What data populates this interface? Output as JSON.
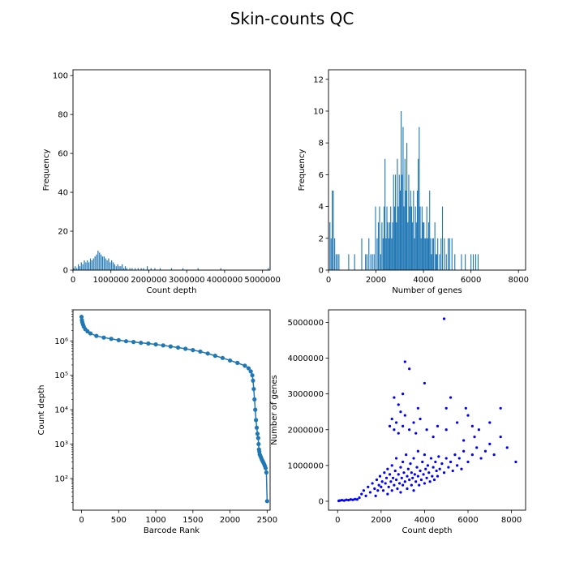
{
  "suptitle": "Skin-counts QC",
  "chart_data": [
    {
      "type": "bar",
      "xlabel": "Count depth",
      "ylabel": "Frequency",
      "xlim": [
        0,
        5200000
      ],
      "ylim": [
        0,
        103
      ],
      "xticks": [
        0,
        1000000,
        2000000,
        3000000,
        4000000,
        5000000
      ],
      "xtick_labels": [
        "0",
        "1000000",
        "2000000",
        "3000000",
        "4000000",
        "5000000"
      ],
      "yticks": [
        0,
        20,
        40,
        60,
        80,
        100
      ],
      "ytick_labels": [
        "0",
        "20",
        "40",
        "60",
        "80",
        "100"
      ],
      "bin_width": 26000,
      "color": "#1f77b4",
      "bins": [
        [
          20000,
          1
        ],
        [
          60000,
          2
        ],
        [
          100000,
          1
        ],
        [
          140000,
          3
        ],
        [
          180000,
          2
        ],
        [
          220000,
          4
        ],
        [
          260000,
          3
        ],
        [
          300000,
          5
        ],
        [
          340000,
          4
        ],
        [
          380000,
          5
        ],
        [
          420000,
          4
        ],
        [
          460000,
          6
        ],
        [
          500000,
          5
        ],
        [
          540000,
          6
        ],
        [
          580000,
          7
        ],
        [
          620000,
          8
        ],
        [
          660000,
          10
        ],
        [
          700000,
          9
        ],
        [
          740000,
          8
        ],
        [
          780000,
          7
        ],
        [
          820000,
          7
        ],
        [
          860000,
          6
        ],
        [
          900000,
          5
        ],
        [
          940000,
          6
        ],
        [
          980000,
          4
        ],
        [
          1020000,
          5
        ],
        [
          1060000,
          4
        ],
        [
          1100000,
          3
        ],
        [
          1140000,
          2
        ],
        [
          1180000,
          3
        ],
        [
          1220000,
          2
        ],
        [
          1260000,
          2
        ],
        [
          1300000,
          3
        ],
        [
          1340000,
          1
        ],
        [
          1380000,
          2
        ],
        [
          1420000,
          1
        ],
        [
          1500000,
          1
        ],
        [
          1560000,
          1
        ],
        [
          1640000,
          1
        ],
        [
          1720000,
          1
        ],
        [
          1800000,
          1
        ],
        [
          1860000,
          1
        ],
        [
          1960000,
          2
        ],
        [
          2060000,
          1
        ],
        [
          2160000,
          1
        ],
        [
          2300000,
          1
        ],
        [
          2600000,
          1
        ],
        [
          2900000,
          1
        ],
        [
          3300000,
          1
        ],
        [
          3900000,
          1
        ],
        [
          5150000,
          1
        ]
      ]
    },
    {
      "type": "bar",
      "xlabel": "Number of genes",
      "ylabel": "Frequency",
      "xlim": [
        0,
        8300
      ],
      "ylim": [
        0,
        12.6
      ],
      "xticks": [
        0,
        2000,
        4000,
        6000,
        8000
      ],
      "xtick_labels": [
        "0",
        "2000",
        "4000",
        "6000",
        "8000"
      ],
      "yticks": [
        0,
        2,
        4,
        6,
        8,
        10,
        12
      ],
      "ytick_labels": [
        "0",
        "2",
        "4",
        "6",
        "8",
        "10",
        "12"
      ],
      "bin_width": 38,
      "color": "#1f77b4",
      "bins": [
        [
          60,
          3
        ],
        [
          110,
          2
        ],
        [
          160,
          5
        ],
        [
          200,
          5
        ],
        [
          260,
          2
        ],
        [
          320,
          1
        ],
        [
          380,
          1
        ],
        [
          440,
          1
        ],
        [
          850,
          1
        ],
        [
          1100,
          1
        ],
        [
          1400,
          2
        ],
        [
          1560,
          1
        ],
        [
          1620,
          1
        ],
        [
          1700,
          2
        ],
        [
          1780,
          1
        ],
        [
          1850,
          1
        ],
        [
          1920,
          1
        ],
        [
          1980,
          4
        ],
        [
          2050,
          2
        ],
        [
          2100,
          3
        ],
        [
          2150,
          4
        ],
        [
          2200,
          1
        ],
        [
          2250,
          3
        ],
        [
          2300,
          2
        ],
        [
          2340,
          4
        ],
        [
          2380,
          7
        ],
        [
          2420,
          2
        ],
        [
          2460,
          4
        ],
        [
          2500,
          3
        ],
        [
          2540,
          2
        ],
        [
          2580,
          3
        ],
        [
          2620,
          4
        ],
        [
          2660,
          2
        ],
        [
          2700,
          3
        ],
        [
          2740,
          6
        ],
        [
          2780,
          4
        ],
        [
          2820,
          6
        ],
        [
          2860,
          3
        ],
        [
          2900,
          7
        ],
        [
          2940,
          4
        ],
        [
          2980,
          6
        ],
        [
          3020,
          5
        ],
        [
          3060,
          10
        ],
        [
          3100,
          6
        ],
        [
          3140,
          9
        ],
        [
          3180,
          4
        ],
        [
          3220,
          7
        ],
        [
          3260,
          5
        ],
        [
          3300,
          8
        ],
        [
          3340,
          3
        ],
        [
          3380,
          6
        ],
        [
          3420,
          4
        ],
        [
          3460,
          5
        ],
        [
          3500,
          4
        ],
        [
          3540,
          3
        ],
        [
          3580,
          5
        ],
        [
          3620,
          2
        ],
        [
          3660,
          4
        ],
        [
          3700,
          3
        ],
        [
          3740,
          5
        ],
        [
          3780,
          7
        ],
        [
          3820,
          9
        ],
        [
          3860,
          4
        ],
        [
          3900,
          2
        ],
        [
          3940,
          4
        ],
        [
          3980,
          3
        ],
        [
          4020,
          3
        ],
        [
          4060,
          2
        ],
        [
          4100,
          2
        ],
        [
          4140,
          4
        ],
        [
          4180,
          2
        ],
        [
          4220,
          3
        ],
        [
          4260,
          5
        ],
        [
          4300,
          2
        ],
        [
          4340,
          1
        ],
        [
          4380,
          2
        ],
        [
          4420,
          2
        ],
        [
          4480,
          3
        ],
        [
          4520,
          1
        ],
        [
          4560,
          1
        ],
        [
          4600,
          2
        ],
        [
          4680,
          1
        ],
        [
          4740,
          2
        ],
        [
          4800,
          4
        ],
        [
          4880,
          2
        ],
        [
          4960,
          1
        ],
        [
          5040,
          2
        ],
        [
          5100,
          2
        ],
        [
          5200,
          2
        ],
        [
          5320,
          1
        ],
        [
          5600,
          1
        ],
        [
          5760,
          1
        ],
        [
          6000,
          1
        ],
        [
          6100,
          1
        ],
        [
          6200,
          1
        ],
        [
          6300,
          1
        ]
      ]
    },
    {
      "type": "line",
      "xlabel": "Barcode Rank",
      "ylabel": "Count depth",
      "yscale": "log",
      "xlim": [
        -115,
        2540
      ],
      "ylim": [
        12,
        8000000
      ],
      "xticks": [
        0,
        500,
        1000,
        1500,
        2000,
        2500
      ],
      "xtick_labels": [
        "0",
        "500",
        "1000",
        "1500",
        "2000",
        "2500"
      ],
      "yticks": [
        100,
        1000,
        10000,
        100000,
        1000000
      ],
      "ytick_labels": [
        "10²",
        "10³",
        "10⁴",
        "10⁵",
        "10⁶"
      ],
      "color": "#1f77b4",
      "marker": "circle",
      "x": [
        0,
        5,
        10,
        20,
        30,
        50,
        80,
        120,
        200,
        300,
        400,
        500,
        600,
        700,
        800,
        900,
        1000,
        1100,
        1200,
        1300,
        1400,
        1500,
        1600,
        1700,
        1800,
        1900,
        2000,
        2100,
        2200,
        2250,
        2280,
        2300,
        2310,
        2320,
        2330,
        2340,
        2350,
        2360,
        2370,
        2380,
        2385,
        2390,
        2395,
        2400,
        2410,
        2420,
        2430,
        2440,
        2450,
        2460,
        2470,
        2480,
        2490,
        2500
      ],
      "y": [
        5000000,
        4000000,
        3500000,
        3000000,
        2600000,
        2200000,
        1900000,
        1650000,
        1400000,
        1250000,
        1150000,
        1050000,
        980000,
        930000,
        880000,
        840000,
        790000,
        740000,
        690000,
        640000,
        590000,
        540000,
        490000,
        430000,
        370000,
        320000,
        270000,
        230000,
        190000,
        160000,
        130000,
        100000,
        70000,
        40000,
        20000,
        10000,
        5000,
        3000,
        2000,
        1500,
        1000,
        700,
        600,
        500,
        450,
        400,
        350,
        320,
        290,
        260,
        230,
        200,
        150,
        22
      ]
    },
    {
      "type": "scatter",
      "xlabel": "Count depth",
      "ylabel": "Number of genes",
      "xlim": [
        -420,
        8650
      ],
      "ylim": [
        -250000,
        5350000
      ],
      "xticks": [
        0,
        2000,
        4000,
        6000,
        8000
      ],
      "xtick_labels": [
        "0",
        "2000",
        "4000",
        "6000",
        "8000"
      ],
      "yticks": [
        0,
        1000000,
        2000000,
        3000000,
        4000000,
        5000000
      ],
      "ytick_labels": [
        "0",
        "1000000",
        "2000000",
        "3000000",
        "4000000",
        "5000000"
      ],
      "color": "#0000ff",
      "points": [
        [
          50,
          10000
        ],
        [
          100,
          20000
        ],
        [
          200,
          30000
        ],
        [
          300,
          20000
        ],
        [
          400,
          40000
        ],
        [
          500,
          30000
        ],
        [
          600,
          50000
        ],
        [
          700,
          40000
        ],
        [
          800,
          60000
        ],
        [
          900,
          50000
        ],
        [
          1000,
          100000
        ],
        [
          1100,
          200000
        ],
        [
          1200,
          300000
        ],
        [
          1300,
          150000
        ],
        [
          1400,
          400000
        ],
        [
          1500,
          250000
        ],
        [
          1600,
          500000
        ],
        [
          1700,
          350000
        ],
        [
          1750,
          150000
        ],
        [
          1800,
          600000
        ],
        [
          1850,
          300000
        ],
        [
          1900,
          450000
        ],
        [
          1950,
          700000
        ],
        [
          2000,
          400000
        ],
        [
          2050,
          550000
        ],
        [
          2100,
          300000
        ],
        [
          2150,
          800000
        ],
        [
          2200,
          500000
        ],
        [
          2250,
          650000
        ],
        [
          2300,
          900000
        ],
        [
          2300,
          200000
        ],
        [
          2350,
          400000
        ],
        [
          2400,
          750000
        ],
        [
          2450,
          550000
        ],
        [
          2500,
          1000000
        ],
        [
          2500,
          300000
        ],
        [
          2550,
          650000
        ],
        [
          2600,
          450000
        ],
        [
          2650,
          850000
        ],
        [
          2700,
          600000
        ],
        [
          2700,
          1200000
        ],
        [
          2750,
          350000
        ],
        [
          2800,
          750000
        ],
        [
          2850,
          500000
        ],
        [
          2900,
          950000
        ],
        [
          2900,
          250000
        ],
        [
          2950,
          650000
        ],
        [
          3000,
          1100000
        ],
        [
          3000,
          450000
        ],
        [
          3050,
          800000
        ],
        [
          3100,
          550000
        ],
        [
          3150,
          1300000
        ],
        [
          3200,
          700000
        ],
        [
          3200,
          350000
        ],
        [
          3250,
          900000
        ],
        [
          3300,
          600000
        ],
        [
          3350,
          1050000
        ],
        [
          3400,
          450000
        ],
        [
          3400,
          800000
        ],
        [
          3450,
          650000
        ],
        [
          3500,
          1200000
        ],
        [
          3500,
          300000
        ],
        [
          3550,
          750000
        ],
        [
          3600,
          550000
        ],
        [
          3650,
          950000
        ],
        [
          3700,
          700000
        ],
        [
          3700,
          1400000
        ],
        [
          3750,
          450000
        ],
        [
          3800,
          850000
        ],
        [
          3850,
          600000
        ],
        [
          3900,
          1100000
        ],
        [
          3950,
          750000
        ],
        [
          4000,
          500000
        ],
        [
          4000,
          1300000
        ],
        [
          4050,
          900000
        ],
        [
          4100,
          650000
        ],
        [
          4150,
          1000000
        ],
        [
          4200,
          800000
        ],
        [
          4250,
          550000
        ],
        [
          4300,
          1200000
        ],
        [
          4350,
          700000
        ],
        [
          4400,
          950000
        ],
        [
          4450,
          600000
        ],
        [
          4500,
          1100000
        ],
        [
          4550,
          850000
        ],
        [
          4600,
          700000
        ],
        [
          4650,
          1250000
        ],
        [
          4700,
          900000
        ],
        [
          4800,
          1050000
        ],
        [
          4900,
          800000
        ],
        [
          5000,
          1200000
        ],
        [
          5100,
          950000
        ],
        [
          5200,
          1100000
        ],
        [
          5300,
          850000
        ],
        [
          5400,
          1300000
        ],
        [
          5500,
          1000000
        ],
        [
          5600,
          1200000
        ],
        [
          5700,
          900000
        ],
        [
          5800,
          1400000
        ],
        [
          6000,
          1100000
        ],
        [
          6200,
          1300000
        ],
        [
          6400,
          1500000
        ],
        [
          6600,
          1200000
        ],
        [
          6800,
          1400000
        ],
        [
          7000,
          1600000
        ],
        [
          7200,
          1300000
        ],
        [
          7500,
          1800000
        ],
        [
          7800,
          1500000
        ],
        [
          8200,
          1100000
        ],
        [
          2400,
          2100000
        ],
        [
          2500,
          2300000
        ],
        [
          2600,
          2000000
        ],
        [
          2700,
          2200000
        ],
        [
          2800,
          1900000
        ],
        [
          2900,
          2500000
        ],
        [
          3000,
          2100000
        ],
        [
          3100,
          2400000
        ],
        [
          3300,
          2000000
        ],
        [
          3500,
          2200000
        ],
        [
          3600,
          1900000
        ],
        [
          3800,
          2300000
        ],
        [
          4100,
          2000000
        ],
        [
          4400,
          1800000
        ],
        [
          4600,
          2100000
        ],
        [
          5000,
          2000000
        ],
        [
          5500,
          2200000
        ],
        [
          6000,
          2400000
        ],
        [
          6200,
          2100000
        ],
        [
          6500,
          2000000
        ],
        [
          7000,
          2200000
        ],
        [
          7500,
          2600000
        ],
        [
          6300,
          1800000
        ],
        [
          5800,
          1700000
        ],
        [
          2600,
          2900000
        ],
        [
          2800,
          2700000
        ],
        [
          3000,
          3000000
        ],
        [
          3100,
          3900000
        ],
        [
          3300,
          3700000
        ],
        [
          3700,
          2600000
        ],
        [
          4000,
          3300000
        ],
        [
          5000,
          2600000
        ],
        [
          5200,
          2900000
        ],
        [
          5900,
          2600000
        ],
        [
          4900,
          5100000
        ]
      ]
    }
  ]
}
